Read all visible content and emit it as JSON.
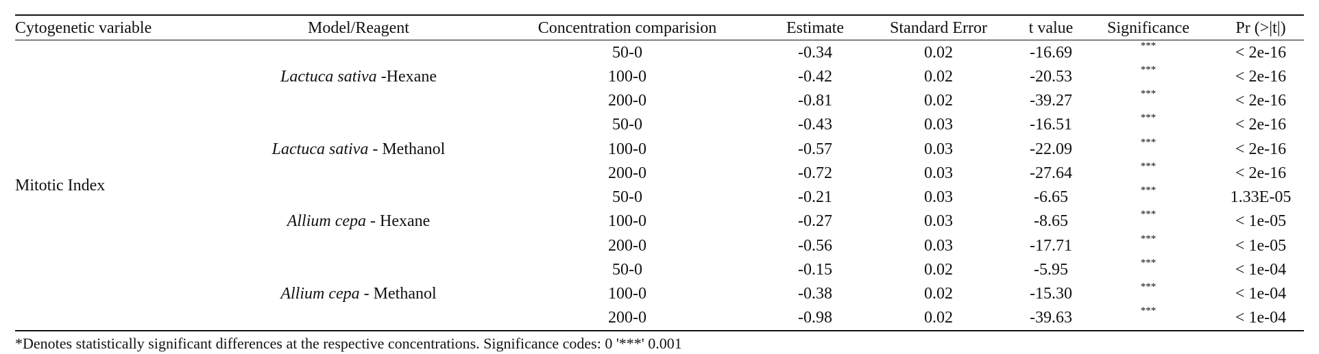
{
  "table": {
    "headers": [
      "Cytogenetic variable",
      "Model/Reagent",
      "Concentration comparision",
      "Estimate",
      "Standard Error",
      "t value",
      "Significance",
      "Pr (>|t|)"
    ],
    "variable": "Mitotic Index",
    "groups": [
      {
        "species": "Lactuca sativa",
        "reagent": "-Hexane",
        "rows": [
          [
            "50-0",
            "-0.34",
            "0.02",
            "-16.69",
            "***",
            "< 2e-16"
          ],
          [
            "100-0",
            "-0.42",
            "0.02",
            "-20.53",
            "***",
            "< 2e-16"
          ],
          [
            "200-0",
            "-0.81",
            "0.02",
            "-39.27",
            "***",
            "< 2e-16"
          ]
        ]
      },
      {
        "species": "Lactuca sativa",
        "reagent": "- Methanol",
        "rows": [
          [
            "50-0",
            "-0.43",
            "0.03",
            "-16.51",
            "***",
            "< 2e-16"
          ],
          [
            "100-0",
            "-0.57",
            "0.03",
            "-22.09",
            "***",
            "< 2e-16"
          ],
          [
            "200-0",
            "-0.72",
            "0.03",
            "-27.64",
            "***",
            "< 2e-16"
          ]
        ]
      },
      {
        "species": "Allium cepa",
        "reagent": "- Hexane",
        "rows": [
          [
            "50-0",
            "-0.21",
            "0.03",
            "-6.65",
            "***",
            "1.33E-05"
          ],
          [
            "100-0",
            "-0.27",
            "0.03",
            "-8.65",
            "***",
            "< 1e-05"
          ],
          [
            "200-0",
            "-0.56",
            "0.03",
            "-17.71",
            "***",
            "< 1e-05"
          ]
        ]
      },
      {
        "species": "Allium cepa",
        "reagent": "- Methanol",
        "rows": [
          [
            "50-0",
            "-0.15",
            "0.02",
            "-5.95",
            "***",
            "< 1e-04"
          ],
          [
            "100-0",
            "-0.38",
            "0.02",
            "-15.30",
            "***",
            "< 1e-04"
          ],
          [
            "200-0",
            "-0.98",
            "0.02",
            "-39.63",
            "***",
            "< 1e-04"
          ]
        ]
      }
    ],
    "footnote": "*Denotes statistically significant differences at the respective concentrations. Significance codes: 0 '***' 0.001"
  }
}
